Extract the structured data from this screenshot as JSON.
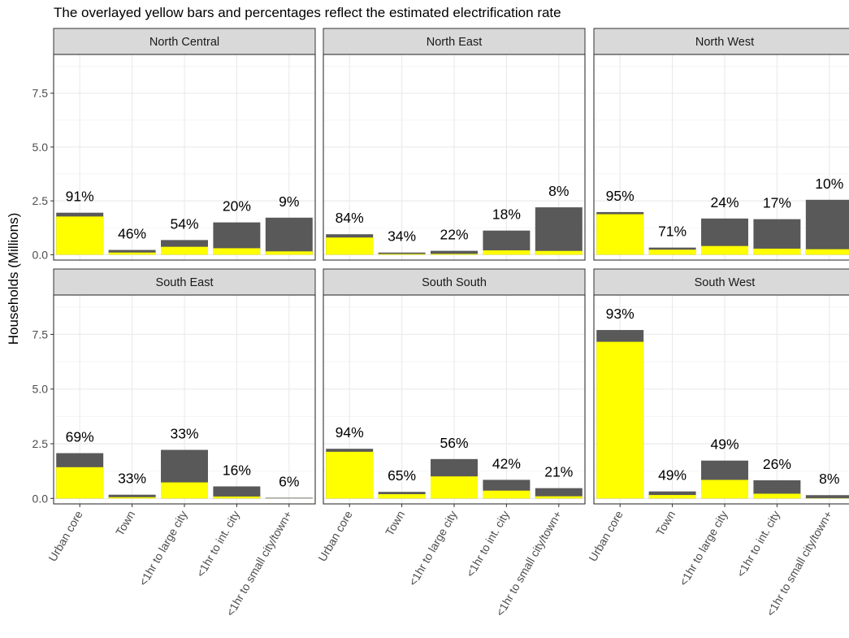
{
  "chart_data": {
    "type": "bar",
    "title": "The overlayed yellow bars and percentages reflect the estimated electrification rate",
    "ylabel": "Households (Millions)",
    "xlabel": "",
    "ylim": [
      -0.25,
      9.3
    ],
    "yticks": [
      0.0,
      2.5,
      5.0,
      7.5
    ],
    "ytick_labels": [
      "0.0",
      "2.5",
      "5.0",
      "7.5"
    ],
    "categories": [
      "Urban core",
      "Town",
      "<1hr to large city",
      "<1hr to int. city",
      "<1hr to small city/town+"
    ],
    "grid": true,
    "total_color": "#595959",
    "electrified_color": "#ffff00",
    "facets": [
      {
        "name": "North Central",
        "totals": [
          1.95,
          0.22,
          0.68,
          1.5,
          1.72
        ],
        "pct_labels": [
          "91%",
          "46%",
          "54%",
          "20%",
          "9%"
        ],
        "rates": [
          0.91,
          0.46,
          0.54,
          0.2,
          0.09
        ]
      },
      {
        "name": "North East",
        "totals": [
          0.95,
          0.1,
          0.18,
          1.12,
          2.2
        ],
        "pct_labels": [
          "84%",
          "34%",
          "22%",
          "18%",
          "8%"
        ],
        "rates": [
          0.84,
          0.34,
          0.22,
          0.18,
          0.08
        ]
      },
      {
        "name": "North West",
        "totals": [
          1.98,
          0.33,
          1.68,
          1.65,
          2.55
        ],
        "pct_labels": [
          "95%",
          "71%",
          "24%",
          "17%",
          "10%"
        ],
        "rates": [
          0.95,
          0.71,
          0.24,
          0.17,
          0.1
        ]
      },
      {
        "name": "South East",
        "totals": [
          2.07,
          0.17,
          2.22,
          0.55,
          0.03
        ],
        "pct_labels": [
          "69%",
          "33%",
          "33%",
          "16%",
          "6%"
        ],
        "rates": [
          0.69,
          0.33,
          0.33,
          0.16,
          0.06
        ]
      },
      {
        "name": "South South",
        "totals": [
          2.27,
          0.3,
          1.8,
          0.85,
          0.47
        ],
        "pct_labels": [
          "94%",
          "65%",
          "56%",
          "42%",
          "21%"
        ],
        "rates": [
          0.94,
          0.65,
          0.56,
          0.42,
          0.21
        ]
      },
      {
        "name": "South West",
        "totals": [
          7.7,
          0.32,
          1.73,
          0.83,
          0.15
        ],
        "pct_labels": [
          "93%",
          "49%",
          "49%",
          "26%",
          "8%"
        ],
        "rates": [
          0.93,
          0.49,
          0.49,
          0.26,
          0.08
        ]
      }
    ]
  }
}
